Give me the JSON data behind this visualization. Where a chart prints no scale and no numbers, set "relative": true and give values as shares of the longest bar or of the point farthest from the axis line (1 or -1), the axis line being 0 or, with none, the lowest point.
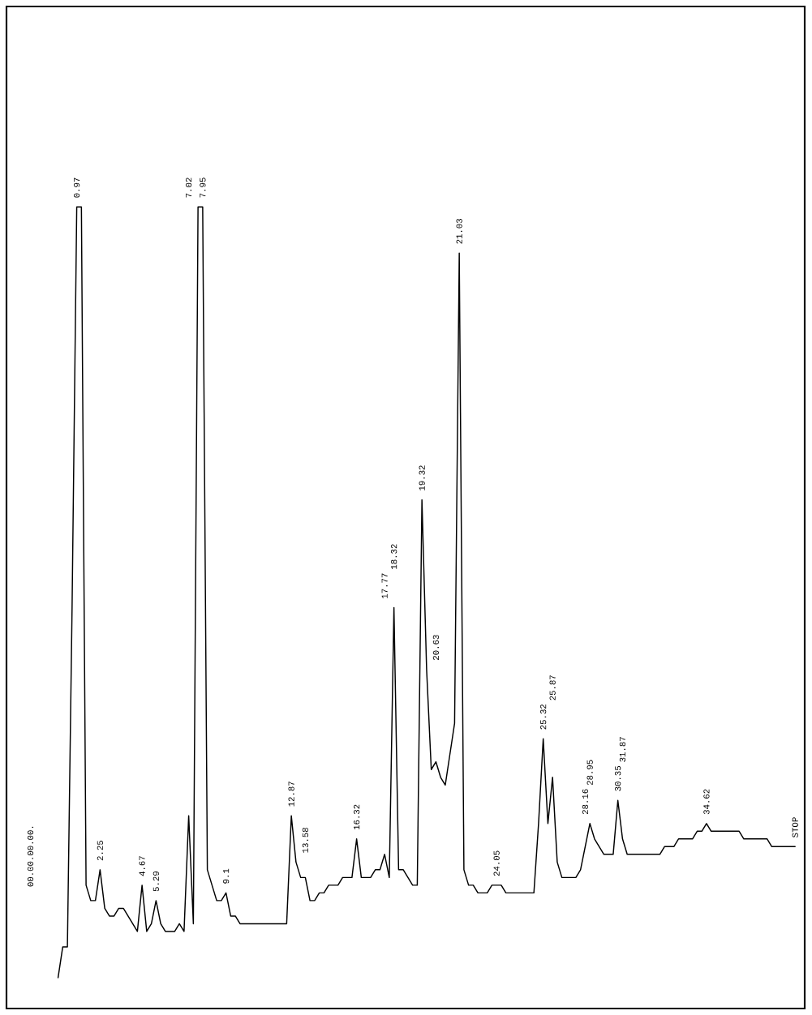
{
  "chart_data": {
    "type": "line",
    "relative": true,
    "tick_labels": false,
    "color": "#000000",
    "categories": [
      null,
      null,
      null,
      null,
      null,
      null,
      null,
      null,
      null,
      null,
      null,
      null,
      null,
      null,
      null,
      null,
      null,
      null,
      null,
      null,
      null,
      null,
      null,
      null,
      null,
      null,
      null,
      null,
      null,
      null,
      null,
      null,
      null,
      null,
      null,
      null,
      null,
      null,
      null,
      null,
      null,
      null,
      null,
      null,
      null,
      null,
      null,
      null,
      null,
      null,
      null,
      null,
      null,
      null,
      null,
      null,
      null,
      null,
      null,
      null,
      null,
      null,
      null,
      null,
      null,
      null,
      null,
      null,
      null,
      null,
      null,
      null,
      null,
      null,
      null,
      null,
      null,
      null,
      null,
      null,
      null,
      null,
      null,
      null,
      null,
      null,
      null,
      null,
      null,
      null,
      null,
      null,
      null,
      null,
      null,
      null,
      null,
      null,
      null,
      null,
      null,
      null,
      null,
      null,
      null,
      null,
      null,
      null,
      null,
      null,
      null,
      null,
      null,
      null,
      null,
      null,
      null,
      null,
      null,
      null,
      null,
      null,
      null,
      null,
      null,
      null,
      null,
      null,
      null,
      null,
      null,
      null,
      null,
      null,
      null,
      null,
      null,
      null,
      null,
      null,
      null,
      null,
      null,
      null,
      null,
      null,
      null,
      null,
      null,
      null,
      null,
      null,
      null,
      null,
      null,
      null,
      null,
      null,
      null
    ],
    "values": [
      0.0,
      0.04,
      0.04,
      0.48,
      1.0,
      1.0,
      0.12,
      0.1,
      0.1,
      0.14,
      0.09,
      0.08,
      0.08,
      0.09,
      0.09,
      0.08,
      0.07,
      0.06,
      0.12,
      0.06,
      0.07,
      0.1,
      0.07,
      0.06,
      0.06,
      0.06,
      0.07,
      0.06,
      0.21,
      0.07,
      1.0,
      1.0,
      0.14,
      0.12,
      0.1,
      0.1,
      0.11,
      0.08,
      0.08,
      0.07,
      0.07,
      0.07,
      0.07,
      0.07,
      0.07,
      0.07,
      0.07,
      0.07,
      0.07,
      0.07,
      0.21,
      0.15,
      0.13,
      0.13,
      0.1,
      0.1,
      0.11,
      0.11,
      0.12,
      0.12,
      0.12,
      0.13,
      0.13,
      0.13,
      0.18,
      0.13,
      0.13,
      0.13,
      0.14,
      0.14,
      0.16,
      0.13,
      0.48,
      0.14,
      0.14,
      0.13,
      0.12,
      0.12,
      0.62,
      0.4,
      0.27,
      0.28,
      0.26,
      0.25,
      0.29,
      0.33,
      0.94,
      0.14,
      0.12,
      0.12,
      0.11,
      0.11,
      0.11,
      0.12,
      0.12,
      0.12,
      0.11,
      0.11,
      0.11,
      0.11,
      0.11,
      0.11,
      0.11,
      0.2,
      0.31,
      0.2,
      0.26,
      0.15,
      0.13,
      0.13,
      0.13,
      0.13,
      0.14,
      0.17,
      0.2,
      0.18,
      0.17,
      0.16,
      0.16,
      0.16,
      0.23,
      0.18,
      0.16,
      0.16,
      0.16,
      0.16,
      0.16,
      0.16,
      0.16,
      0.16,
      0.17,
      0.17,
      0.17,
      0.18,
      0.18,
      0.18,
      0.18,
      0.19,
      0.19,
      0.2,
      0.19,
      0.19,
      0.19,
      0.19,
      0.19,
      0.19,
      0.19,
      0.18,
      0.18,
      0.18,
      0.18,
      0.18,
      0.18,
      0.17,
      0.17,
      0.17,
      0.17,
      0.17,
      0.17
    ],
    "annotations": [
      "0.97",
      "2.25",
      "4.67",
      "5.29",
      "7.02",
      "7.95",
      "9.1",
      "12.87",
      "13.58",
      "16.32",
      "17.77",
      "18.32",
      "19.32",
      "20.63",
      "21.03",
      "24.05",
      "25.32",
      "25.87",
      "28.16",
      "28.95",
      "30.35",
      "31.87",
      "34.62",
      "STOP",
      "00.00.00.00."
    ]
  }
}
